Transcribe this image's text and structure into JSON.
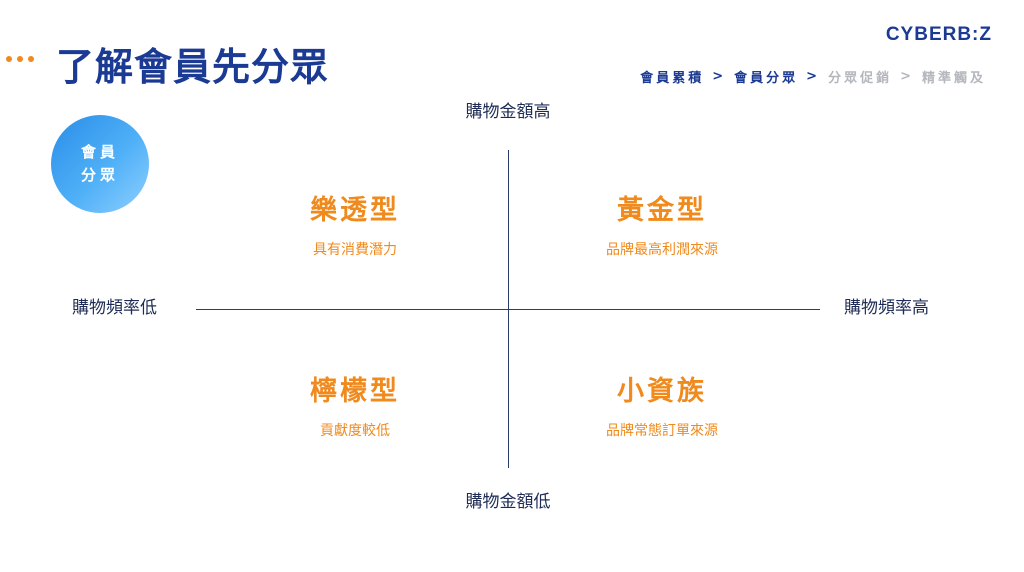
{
  "header": {
    "title": "了解會員先分眾",
    "logo": "CYBERB:Z"
  },
  "breadcrumb": {
    "steps": [
      "會員累積",
      "會員分眾",
      "分眾促銷",
      "精準觸及"
    ],
    "separator": ">",
    "active_color": "#1b3a93",
    "inactive_color": "#b4b7bd"
  },
  "badge": {
    "line1": "會員",
    "line2": "分眾"
  },
  "axes": {
    "top": "購物金額高",
    "bottom": "購物金額低",
    "left": "購物頻率低",
    "right": "購物頻率高"
  },
  "quadrants": [
    {
      "title": "樂透型",
      "desc": "具有消費潛力"
    },
    {
      "title": "黃金型",
      "desc": "品牌最高利潤來源"
    },
    {
      "title": "檸檬型",
      "desc": "貢獻度較低"
    },
    {
      "title": "小資族",
      "desc": "品牌常態訂單來源"
    }
  ],
  "colors": {
    "accent": "#f08a1c",
    "brand": "#1b3a93"
  }
}
